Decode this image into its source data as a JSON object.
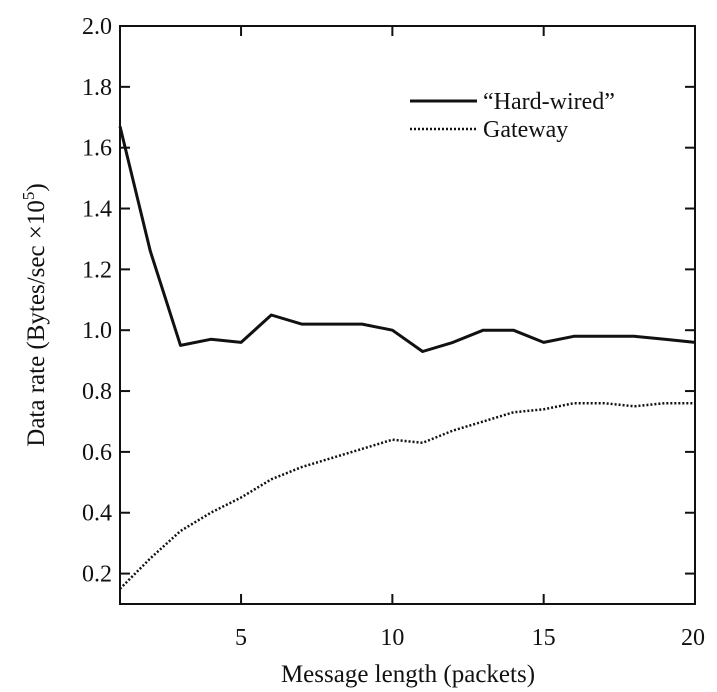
{
  "chart_data": {
    "type": "line",
    "title": "",
    "xlabel": "Message length (packets)",
    "ylabel": {
      "prefix": "Data rate (Bytes/sec ×10",
      "exponent": "5",
      "suffix": ")"
    },
    "xlim": [
      1,
      20
    ],
    "ylim": [
      0.1,
      2.0
    ],
    "xticks": [
      5,
      10,
      15,
      20
    ],
    "yticks": [
      0.2,
      0.4,
      0.6,
      0.8,
      1.0,
      1.2,
      1.4,
      1.6,
      1.8,
      2.0
    ],
    "grid": false,
    "legend_position": "top-right",
    "series": [
      {
        "name": "“Hard-wired”",
        "style": "solid",
        "color": "#111111",
        "x": [
          1,
          2,
          3,
          4,
          5,
          6,
          7,
          8,
          9,
          10,
          11,
          12,
          13,
          14,
          15,
          16,
          17,
          18,
          19,
          20
        ],
        "y": [
          1.67,
          1.26,
          0.95,
          0.97,
          0.96,
          1.05,
          1.02,
          1.02,
          1.02,
          1.0,
          0.93,
          0.96,
          1.0,
          1.0,
          0.96,
          0.98,
          0.98,
          0.98,
          0.97,
          0.96
        ]
      },
      {
        "name": "Gateway",
        "style": "dotted",
        "color": "#111111",
        "x": [
          1,
          2,
          3,
          4,
          5,
          6,
          7,
          8,
          9,
          10,
          11,
          12,
          13,
          14,
          15,
          16,
          17,
          18,
          19,
          20
        ],
        "y": [
          0.15,
          0.25,
          0.34,
          0.4,
          0.45,
          0.51,
          0.55,
          0.58,
          0.61,
          0.64,
          0.63,
          0.67,
          0.7,
          0.73,
          0.74,
          0.76,
          0.76,
          0.75,
          0.76,
          0.76
        ]
      }
    ]
  }
}
